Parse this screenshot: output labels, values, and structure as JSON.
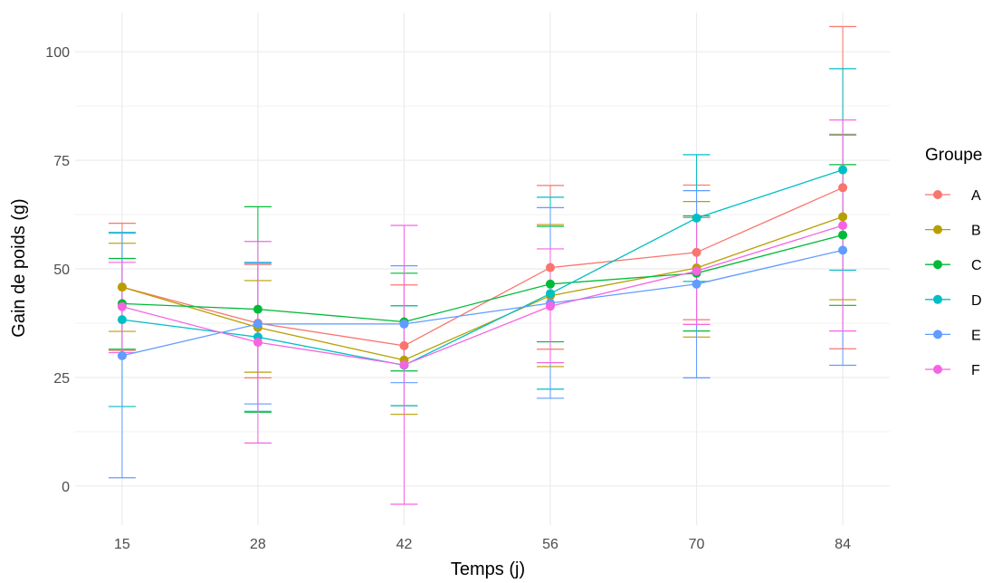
{
  "chart_data": {
    "type": "line",
    "xlabel": "Temps (j)",
    "ylabel": "Gain de poids (g)",
    "x": [
      15,
      28,
      42,
      56,
      70,
      84
    ],
    "x_tick_labels": [
      "15",
      "28",
      "42",
      "56",
      "70",
      "84"
    ],
    "y_ticks": [
      0,
      25,
      50,
      75,
      100
    ],
    "y_tick_labels": [
      "0",
      "25",
      "50",
      "75",
      "100"
    ],
    "ylim": [
      -9,
      109
    ],
    "grid": true,
    "legend": {
      "title": "Groupe",
      "placement": "right"
    },
    "series": [
      {
        "name": "A",
        "color": "#F8766D",
        "values": [
          45.8,
          37.5,
          32.3,
          50.3,
          53.8,
          68.7
        ],
        "err_low": [
          31.2,
          24.9,
          18.5,
          31.5,
          38.3,
          31.6
        ],
        "err_high": [
          60.5,
          51.0,
          46.3,
          69.2,
          69.3,
          105.8
        ]
      },
      {
        "name": "B",
        "color": "#B79F00",
        "values": [
          45.8,
          36.5,
          29.0,
          43.8,
          50.2,
          62.0
        ],
        "err_low": [
          35.6,
          26.2,
          16.5,
          27.5,
          34.3,
          42.9
        ],
        "err_high": [
          55.9,
          47.3,
          41.5,
          60.2,
          65.5,
          81.0
        ]
      },
      {
        "name": "C",
        "color": "#00BA38",
        "values": [
          42.0,
          40.7,
          37.8,
          46.5,
          49.0,
          57.8
        ],
        "err_low": [
          31.5,
          17.0,
          26.5,
          33.2,
          35.7,
          41.6
        ],
        "err_high": [
          52.4,
          64.3,
          49.0,
          59.8,
          62.2,
          74.0
        ]
      },
      {
        "name": "D",
        "color": "#00BFC4",
        "values": [
          38.3,
          34.3,
          27.8,
          44.3,
          61.7,
          72.8
        ],
        "err_low": [
          18.3,
          17.2,
          18.5,
          22.3,
          47.1,
          49.7
        ],
        "err_high": [
          58.4,
          51.5,
          41.5,
          66.5,
          76.3,
          96.1
        ]
      },
      {
        "name": "E",
        "color": "#619CFF",
        "values": [
          30.0,
          37.3,
          37.3,
          42.1,
          46.5,
          54.3
        ],
        "err_low": [
          1.9,
          18.9,
          23.8,
          20.2,
          24.9,
          27.8
        ],
        "err_high": [
          58.2,
          51.3,
          50.7,
          64.1,
          68.0,
          80.8
        ]
      },
      {
        "name": "F",
        "color": "#F564E3",
        "values": [
          41.3,
          33.1,
          27.9,
          41.4,
          49.5,
          60.0
        ],
        "err_low": [
          30.7,
          9.9,
          -4.2,
          28.4,
          37.2,
          35.7
        ],
        "err_high": [
          51.5,
          56.3,
          60.0,
          54.6,
          61.8,
          84.3
        ]
      }
    ]
  }
}
